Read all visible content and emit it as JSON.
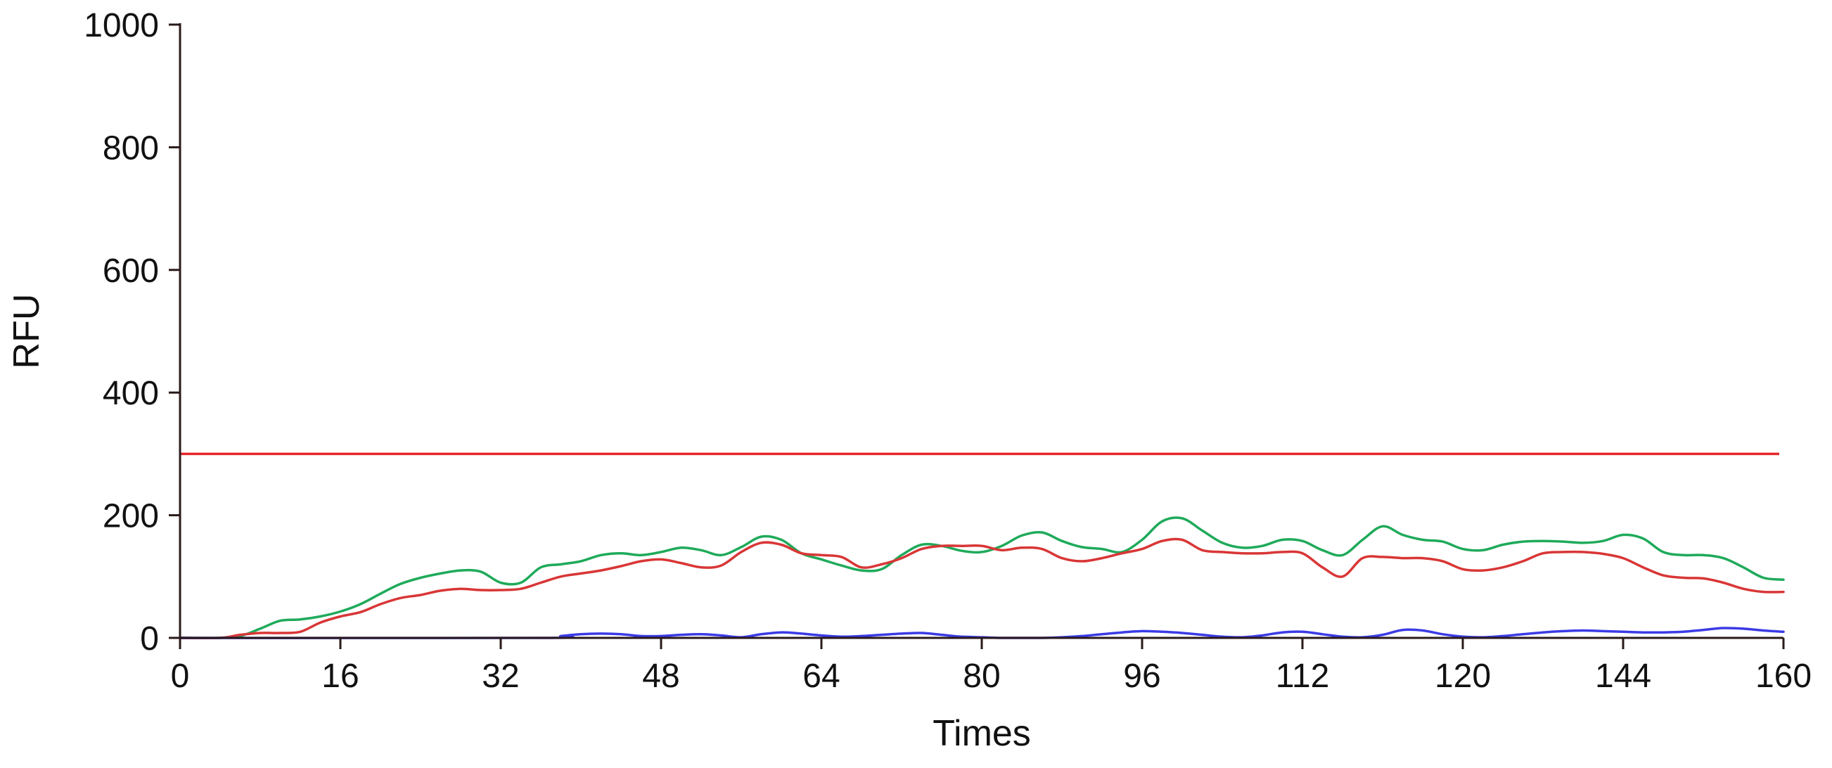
{
  "chart_data": {
    "type": "line",
    "xlabel": "Times",
    "ylabel": "RFU",
    "xlim": [
      0,
      160
    ],
    "ylim": [
      0,
      1000
    ],
    "xticks": [
      "0",
      "16",
      "32",
      "48",
      "64",
      "80",
      "96",
      "112",
      "120",
      "144",
      "160"
    ],
    "yticks": [
      "0",
      "200",
      "400",
      "600",
      "800",
      "1000"
    ],
    "grid": false,
    "legend": "none",
    "threshold": {
      "y": 300,
      "color": "#e8262a"
    },
    "series": [
      {
        "color": "#1faa5a",
        "x": [
          0,
          4,
          6,
          8,
          10,
          12,
          14,
          16,
          18,
          20,
          22,
          24,
          26,
          28,
          30,
          32,
          34,
          36,
          38,
          40,
          42,
          44,
          46,
          48,
          50,
          52,
          54,
          56,
          58,
          60,
          62,
          64,
          66,
          68,
          70,
          72,
          74,
          76,
          78,
          80,
          82,
          84,
          86,
          88,
          90,
          92,
          94,
          96,
          98,
          100,
          102,
          104,
          106,
          108,
          110,
          112,
          114,
          116,
          118,
          120,
          122,
          124,
          126,
          128,
          130,
          132,
          134,
          136,
          138,
          140,
          142,
          144,
          146,
          148,
          150,
          152,
          154,
          156,
          158,
          160
        ],
        "y": [
          0,
          0,
          3,
          15,
          28,
          30,
          35,
          43,
          55,
          72,
          88,
          98,
          105,
          110,
          108,
          90,
          90,
          115,
          120,
          125,
          135,
          138,
          135,
          140,
          147,
          143,
          135,
          148,
          165,
          160,
          138,
          128,
          118,
          110,
          112,
          135,
          152,
          150,
          142,
          140,
          150,
          167,
          172,
          158,
          148,
          145,
          140,
          160,
          190,
          195,
          175,
          155,
          147,
          150,
          160,
          158,
          143,
          135,
          160,
          182,
          168,
          160,
          157,
          145,
          143,
          152,
          157,
          158,
          157,
          155,
          158,
          168,
          162,
          140,
          135,
          135,
          130,
          115,
          98,
          95
        ]
      },
      {
        "color": "#d93636",
        "x": [
          0,
          4,
          6,
          8,
          10,
          12,
          14,
          16,
          18,
          20,
          22,
          24,
          26,
          28,
          30,
          32,
          34,
          36,
          38,
          40,
          42,
          44,
          46,
          48,
          50,
          52,
          54,
          56,
          58,
          60,
          62,
          64,
          66,
          68,
          70,
          72,
          74,
          76,
          78,
          80,
          82,
          84,
          86,
          88,
          90,
          92,
          94,
          96,
          98,
          100,
          102,
          104,
          106,
          108,
          110,
          112,
          114,
          116,
          118,
          120,
          122,
          124,
          126,
          128,
          130,
          132,
          134,
          136,
          138,
          140,
          142,
          144,
          146,
          148,
          150,
          152,
          154,
          156,
          158,
          160
        ],
        "y": [
          0,
          0,
          5,
          8,
          8,
          10,
          25,
          35,
          42,
          55,
          65,
          70,
          77,
          80,
          78,
          78,
          80,
          90,
          100,
          105,
          110,
          117,
          125,
          128,
          122,
          115,
          118,
          140,
          155,
          152,
          138,
          135,
          132,
          115,
          120,
          130,
          145,
          150,
          150,
          150,
          143,
          147,
          145,
          130,
          125,
          130,
          138,
          145,
          158,
          160,
          143,
          140,
          138,
          138,
          140,
          138,
          115,
          100,
          130,
          132,
          130,
          130,
          125,
          112,
          110,
          115,
          125,
          138,
          140,
          140,
          137,
          130,
          115,
          102,
          98,
          97,
          90,
          80,
          75,
          75
        ]
      },
      {
        "color": "#3b3be6",
        "x": [
          0,
          36,
          38,
          40,
          42,
          44,
          46,
          48,
          50,
          52,
          54,
          56,
          58,
          60,
          62,
          64,
          66,
          68,
          70,
          72,
          74,
          76,
          78,
          80,
          82,
          84,
          86,
          88,
          90,
          92,
          94,
          96,
          98,
          100,
          102,
          104,
          106,
          108,
          110,
          112,
          114,
          116,
          118,
          120,
          122,
          124,
          126,
          128,
          130,
          132,
          134,
          136,
          138,
          140,
          142,
          144,
          146,
          148,
          150,
          152,
          154,
          156,
          158,
          160
        ],
        "y": [
          0,
          0,
          3,
          6,
          7,
          6,
          3,
          3,
          5,
          6,
          4,
          1,
          6,
          9,
          7,
          4,
          2,
          3,
          5,
          7,
          8,
          5,
          2,
          1,
          0,
          0,
          0,
          1,
          3,
          6,
          9,
          11,
          10,
          8,
          5,
          2,
          1,
          4,
          9,
          10,
          6,
          2,
          1,
          5,
          13,
          12,
          6,
          2,
          1,
          3,
          6,
          9,
          11,
          12,
          11,
          10,
          9,
          9,
          10,
          13,
          16,
          15,
          12,
          10
        ]
      }
    ]
  }
}
